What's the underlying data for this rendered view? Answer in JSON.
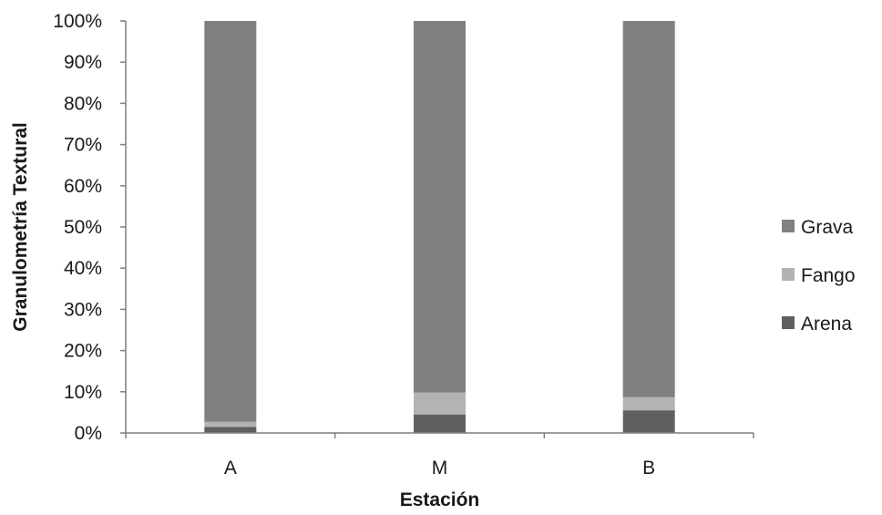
{
  "chart_data": {
    "type": "bar",
    "stacked": true,
    "percent": true,
    "title": "",
    "xlabel": "Estación",
    "ylabel": "Granulometría Textural",
    "categories": [
      "A",
      "M",
      "B"
    ],
    "series": [
      {
        "name": "Arena",
        "color": "#606060",
        "values": [
          1.5,
          4.5,
          5.5
        ]
      },
      {
        "name": "Fango",
        "color": "#b3b3b3",
        "values": [
          1.2,
          5.3,
          3.2
        ]
      },
      {
        "name": "Grava",
        "color": "#808080",
        "values": [
          97.3,
          90.2,
          91.3
        ]
      }
    ],
    "ylim": [
      0,
      100
    ],
    "yticks": [
      "0%",
      "10%",
      "20%",
      "30%",
      "40%",
      "50%",
      "60%",
      "70%",
      "80%",
      "90%",
      "100%"
    ],
    "grid": false,
    "legend": {
      "position": "right",
      "order": [
        "Grava",
        "Fango",
        "Arena"
      ]
    }
  }
}
